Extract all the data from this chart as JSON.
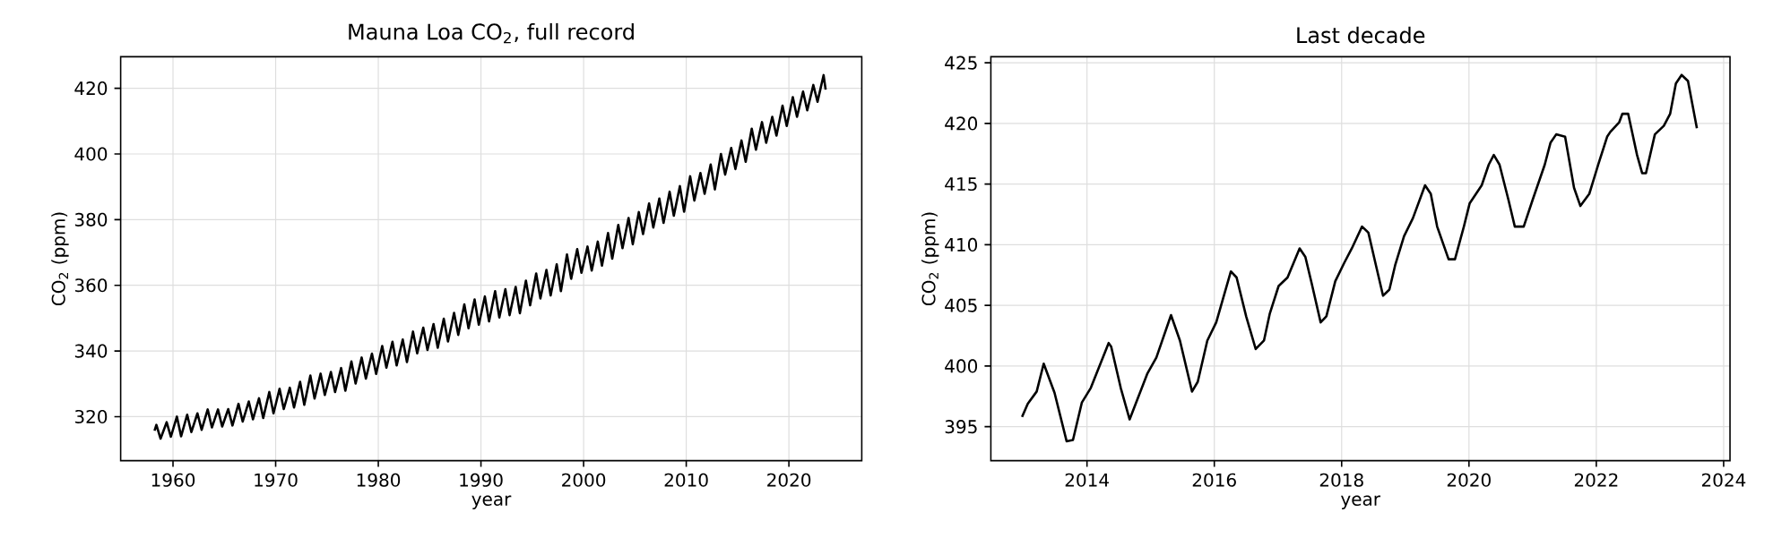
{
  "chart_data": [
    {
      "type": "line",
      "title": "Mauna Loa CO$_{2}$, full record",
      "xlabel": "year",
      "ylabel": "CO$_{2}$ (ppm)",
      "color": "#000000",
      "grid": true,
      "xlim": [
        1954.9,
        2027.1
      ],
      "ylim": [
        306.6,
        429.6
      ],
      "xticks": [
        1960,
        1970,
        1980,
        1990,
        2000,
        2010,
        2020
      ],
      "yticks": [
        320,
        340,
        360,
        380,
        400,
        420
      ],
      "x": [
        1958.2,
        1958.38,
        1958.79,
        1959.38,
        1959.79,
        1960.38,
        1960.79,
        1961.38,
        1961.79,
        1962.38,
        1962.79,
        1963.38,
        1963.79,
        1964.38,
        1964.79,
        1965.38,
        1965.79,
        1966.38,
        1966.79,
        1967.38,
        1967.79,
        1968.38,
        1968.79,
        1969.38,
        1969.79,
        1970.38,
        1970.79,
        1971.38,
        1971.79,
        1972.38,
        1972.79,
        1973.38,
        1973.79,
        1974.38,
        1974.79,
        1975.38,
        1975.79,
        1976.38,
        1976.79,
        1977.38,
        1977.79,
        1978.38,
        1978.79,
        1979.38,
        1979.79,
        1980.38,
        1980.79,
        1981.38,
        1981.79,
        1982.38,
        1982.79,
        1983.38,
        1983.79,
        1984.38,
        1984.79,
        1985.38,
        1985.79,
        1986.38,
        1986.79,
        1987.38,
        1987.79,
        1988.38,
        1988.79,
        1989.38,
        1989.79,
        1990.38,
        1990.79,
        1991.38,
        1991.79,
        1992.38,
        1992.79,
        1993.38,
        1993.79,
        1994.38,
        1994.79,
        1995.38,
        1995.79,
        1996.38,
        1996.79,
        1997.38,
        1997.79,
        1998.38,
        1998.79,
        1999.38,
        1999.79,
        2000.38,
        2000.79,
        2001.38,
        2001.79,
        2002.38,
        2002.79,
        2003.38,
        2003.79,
        2004.38,
        2004.79,
        2005.38,
        2005.79,
        2006.38,
        2006.79,
        2007.38,
        2007.79,
        2008.38,
        2008.79,
        2009.38,
        2009.79,
        2010.38,
        2010.79,
        2011.38,
        2011.79,
        2012.38,
        2012.79,
        2013.38,
        2013.79,
        2014.38,
        2014.79,
        2015.38,
        2015.79,
        2016.38,
        2016.79,
        2017.38,
        2017.79,
        2018.38,
        2018.79,
        2019.38,
        2019.79,
        2020.38,
        2020.79,
        2021.38,
        2021.79,
        2022.38,
        2022.79,
        2023.38,
        2023.58
      ],
      "values": [
        315.7,
        317.5,
        313.3,
        318.3,
        313.9,
        320.0,
        314.0,
        320.6,
        315.3,
        321.0,
        316.0,
        322.2,
        316.7,
        322.2,
        317.0,
        322.3,
        317.3,
        323.9,
        318.5,
        324.6,
        319.2,
        325.6,
        319.6,
        327.5,
        321.0,
        328.5,
        322.3,
        328.8,
        322.8,
        330.6,
        323.6,
        332.5,
        325.5,
        333.1,
        326.6,
        333.6,
        327.5,
        334.8,
        327.9,
        336.8,
        330.1,
        338.0,
        331.6,
        339.2,
        333.0,
        341.5,
        334.9,
        342.8,
        335.6,
        343.5,
        336.6,
        345.9,
        339.3,
        347.1,
        340.3,
        348.2,
        341.0,
        349.8,
        342.9,
        351.6,
        344.9,
        354.2,
        346.9,
        355.7,
        348.0,
        356.6,
        349.0,
        358.2,
        350.2,
        358.8,
        350.9,
        359.5,
        351.5,
        361.4,
        353.9,
        363.6,
        356.0,
        364.7,
        356.9,
        366.4,
        358.2,
        369.4,
        362.0,
        371.0,
        363.8,
        371.8,
        364.5,
        373.3,
        366.0,
        375.9,
        368.1,
        378.4,
        371.3,
        380.5,
        372.5,
        382.3,
        375.6,
        384.9,
        377.6,
        386.4,
        379.0,
        388.5,
        381.2,
        390.2,
        382.4,
        393.2,
        385.8,
        394.2,
        387.9,
        396.8,
        389.2,
        400.0,
        393.7,
        401.8,
        395.4,
        404.1,
        397.6,
        407.7,
        401.3,
        409.7,
        403.4,
        411.3,
        405.6,
        414.7,
        408.5,
        417.3,
        411.3,
        419.0,
        413.3,
        421.0,
        415.9,
        424.0,
        419.6
      ]
    },
    {
      "type": "line",
      "title": "Last decade",
      "xlabel": "year",
      "ylabel": "CO$_{2}$ (ppm)",
      "color": "#000000",
      "grid": true,
      "xlim": [
        2012.49,
        2024.1
      ],
      "ylim": [
        392.2,
        425.5
      ],
      "xticks": [
        2014,
        2016,
        2018,
        2020,
        2022,
        2024
      ],
      "yticks": [
        395,
        400,
        405,
        410,
        415,
        420,
        425
      ],
      "x": [
        2012.98,
        2013.07,
        2013.21,
        2013.32,
        2013.49,
        2013.68,
        2013.78,
        2013.92,
        2014.06,
        2014.34,
        2014.38,
        2014.53,
        2014.67,
        2014.81,
        2014.95,
        2015.09,
        2015.32,
        2015.46,
        2015.65,
        2015.74,
        2015.89,
        2016.03,
        2016.26,
        2016.35,
        2016.5,
        2016.65,
        2016.78,
        2016.87,
        2017.01,
        2017.15,
        2017.34,
        2017.43,
        2017.53,
        2017.67,
        2017.76,
        2017.9,
        2018.04,
        2018.16,
        2018.32,
        2018.42,
        2018.53,
        2018.65,
        2018.75,
        2018.84,
        2018.98,
        2019.12,
        2019.31,
        2019.4,
        2019.5,
        2019.68,
        2019.78,
        2019.92,
        2020.01,
        2020.2,
        2020.31,
        2020.39,
        2020.48,
        2020.62,
        2020.72,
        2020.86,
        2021.0,
        2021.19,
        2021.28,
        2021.37,
        2021.51,
        2021.65,
        2021.75,
        2021.89,
        2022.03,
        2022.17,
        2022.22,
        2022.36,
        2022.41,
        2022.5,
        2022.64,
        2022.72,
        2022.78,
        2022.92,
        2023.06,
        2023.16,
        2023.25,
        2023.34,
        2023.44,
        2023.58
      ],
      "values": [
        395.8,
        396.9,
        397.9,
        400.2,
        397.8,
        393.8,
        393.9,
        397.0,
        398.2,
        401.9,
        401.6,
        398.2,
        395.6,
        397.5,
        399.4,
        400.7,
        404.2,
        402.1,
        397.9,
        398.7,
        402.1,
        403.6,
        407.8,
        407.3,
        404.1,
        401.4,
        402.1,
        404.3,
        406.6,
        407.3,
        409.7,
        409.0,
        406.8,
        403.6,
        404.1,
        407.0,
        408.5,
        409.7,
        411.5,
        411.0,
        408.5,
        405.8,
        406.3,
        408.3,
        410.7,
        412.2,
        414.9,
        414.2,
        411.5,
        408.8,
        408.8,
        411.5,
        413.4,
        414.9,
        416.6,
        417.4,
        416.6,
        413.7,
        411.5,
        411.5,
        413.7,
        416.6,
        418.4,
        419.1,
        418.9,
        414.7,
        413.2,
        414.2,
        416.6,
        418.9,
        419.3,
        420.1,
        420.8,
        420.8,
        417.4,
        415.9,
        415.9,
        419.1,
        419.8,
        420.8,
        423.3,
        424.0,
        423.5,
        419.6
      ]
    }
  ]
}
